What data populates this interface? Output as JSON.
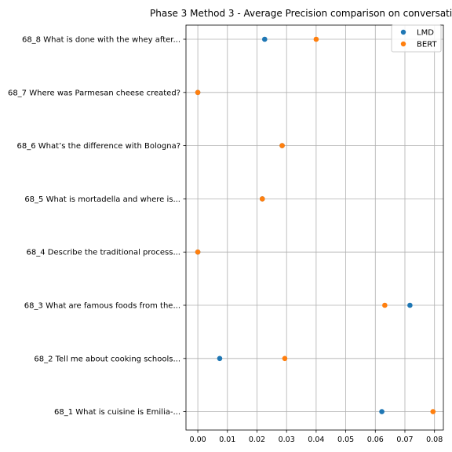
{
  "chart_data": {
    "type": "scatter",
    "title": "Phase 3 Method 3 - Average Precision comparison on conversatio",
    "xlabel": "",
    "ylabel": "",
    "xlim": [
      -0.004,
      0.083
    ],
    "xticks": [
      0.0,
      0.01,
      0.02,
      0.03,
      0.04,
      0.05,
      0.06,
      0.07,
      0.08
    ],
    "xtick_labels": [
      "0.00",
      "0.01",
      "0.02",
      "0.03",
      "0.04",
      "0.05",
      "0.06",
      "0.07",
      "0.08"
    ],
    "categories": [
      "68_8 What is done with the whey after...",
      "68_7 Where was Parmesan cheese created?",
      "68_6 What’s the difference with Bologna?",
      "68_5 What is mortadella and where is...",
      "68_4 Describe the traditional process...",
      "68_3 What are famous foods from the...",
      "68_2 Tell me about cooking schools...",
      "68_1 What is cuisine is Emilia-..."
    ],
    "series": [
      {
        "name": "LMD",
        "color": "#1f77b4",
        "values": [
          0.0226,
          0.0,
          0.0285,
          0.0218,
          0.0,
          0.0717,
          0.0074,
          0.0622
        ]
      },
      {
        "name": "BERT",
        "color": "#ff7f0e",
        "values": [
          0.04,
          0.0,
          0.0285,
          0.0218,
          0.0,
          0.0632,
          0.0294,
          0.0795
        ]
      }
    ],
    "grid": true,
    "legend_position": "top-right"
  }
}
